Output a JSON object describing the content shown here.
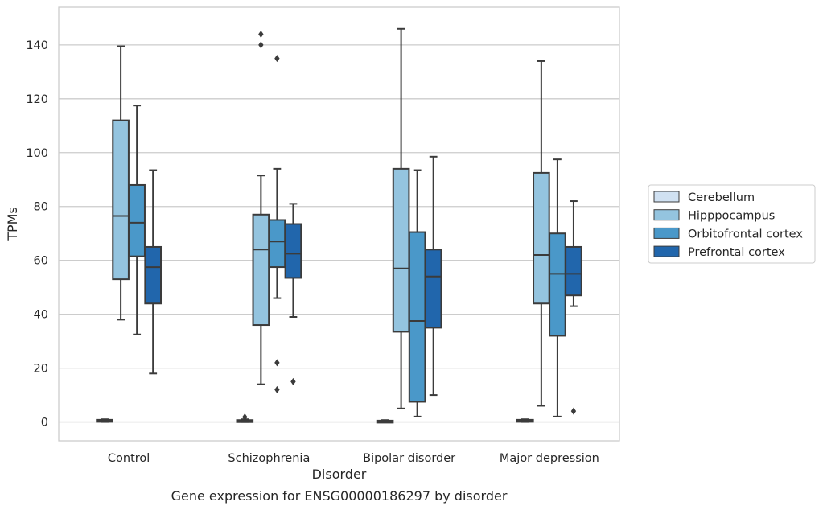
{
  "chart_data": {
    "type": "box",
    "title": "Gene expression for ENSG00000186297 by disorder",
    "xlabel": "Disorder",
    "ylabel": "TPMs",
    "ylim": [
      -7,
      154
    ],
    "yticks": [
      0,
      20,
      40,
      60,
      80,
      100,
      120,
      140
    ],
    "grid": "horizontal",
    "legend_position": "right",
    "categories": [
      "Control",
      "Schizophrenia",
      "Bipolar disorder",
      "Major depression"
    ],
    "series": [
      {
        "name": "Cerebellum",
        "color": "#d0e1f2",
        "boxes": [
          {
            "whislo": 0,
            "q1": 0.2,
            "med": 0.5,
            "q3": 0.8,
            "whishi": 1.0,
            "fliers": []
          },
          {
            "whislo": 0,
            "q1": 0.1,
            "med": 0.4,
            "q3": 0.7,
            "whishi": 1.0,
            "fliers": [
              1.8
            ]
          },
          {
            "whislo": 0,
            "q1": 0.1,
            "med": 0.3,
            "q3": 0.5,
            "whishi": 0.7,
            "fliers": []
          },
          {
            "whislo": 0,
            "q1": 0.2,
            "med": 0.5,
            "q3": 0.8,
            "whishi": 1.0,
            "fliers": []
          }
        ]
      },
      {
        "name": "Hipppocampus",
        "color": "#94c4df",
        "boxes": [
          {
            "whislo": 38,
            "q1": 53,
            "med": 76.5,
            "q3": 112,
            "whishi": 139.5,
            "fliers": []
          },
          {
            "whislo": 14,
            "q1": 36,
            "med": 64,
            "q3": 77,
            "whishi": 91.5,
            "fliers": [
              140,
              144
            ]
          },
          {
            "whislo": 5,
            "q1": 33.5,
            "med": 57,
            "q3": 94,
            "whishi": 146,
            "fliers": []
          },
          {
            "whislo": 6,
            "q1": 44,
            "med": 62,
            "q3": 92.5,
            "whishi": 134,
            "fliers": []
          }
        ]
      },
      {
        "name": "Orbitofrontal cortex",
        "color": "#4a98c9",
        "boxes": [
          {
            "whislo": 32.5,
            "q1": 61.5,
            "med": 74,
            "q3": 88,
            "whishi": 117.5,
            "fliers": []
          },
          {
            "whislo": 46,
            "q1": 57.5,
            "med": 67,
            "q3": 75,
            "whishi": 94,
            "fliers": [
              135,
              22,
              12
            ]
          },
          {
            "whislo": 2,
            "q1": 7.5,
            "med": 37.5,
            "q3": 70.5,
            "whishi": 93.5,
            "fliers": []
          },
          {
            "whislo": 2,
            "q1": 32,
            "med": 55,
            "q3": 70,
            "whishi": 97.5,
            "fliers": []
          }
        ]
      },
      {
        "name": "Prefrontal cortex",
        "color": "#2166ac",
        "boxes": [
          {
            "whislo": 18,
            "q1": 44,
            "med": 57.5,
            "q3": 65,
            "whishi": 93.5,
            "fliers": []
          },
          {
            "whislo": 39,
            "q1": 53.5,
            "med": 62.5,
            "q3": 73.5,
            "whishi": 81,
            "fliers": [
              15
            ]
          },
          {
            "whislo": 10,
            "q1": 35,
            "med": 54,
            "q3": 64,
            "whishi": 98.5,
            "fliers": []
          },
          {
            "whislo": 43,
            "q1": 47,
            "med": 55,
            "q3": 65,
            "whishi": 82,
            "fliers": [
              4
            ]
          }
        ]
      }
    ]
  }
}
